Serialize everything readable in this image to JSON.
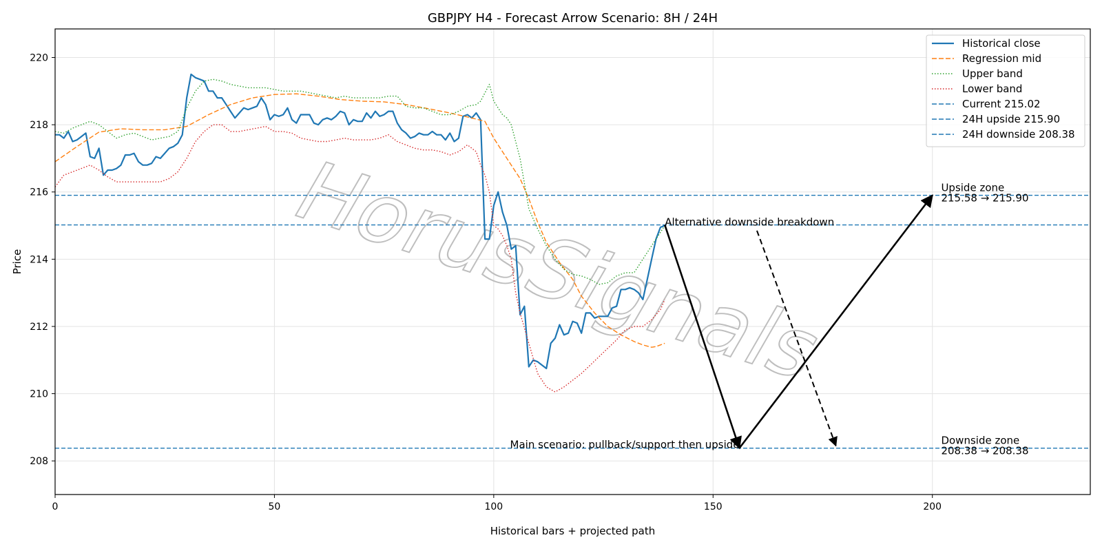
{
  "chart_data": {
    "type": "line",
    "title": "GBPJPY H4 - Forecast Arrow Scenario: 8H / 24H",
    "xlabel": "Historical bars + projected path",
    "ylabel": "Price",
    "xlim": [
      0,
      236
    ],
    "ylim": [
      207,
      220.85
    ],
    "x_ticks": [
      0,
      50,
      100,
      150,
      200
    ],
    "y_ticks": [
      208,
      210,
      212,
      214,
      216,
      218,
      220
    ],
    "grid": true,
    "legend_position": "upper right",
    "watermark": "HorusSignals",
    "colors": {
      "historical": "#1f77b4",
      "regression": "#ff7f0e",
      "upper": "#2ca02c",
      "lower": "#d62728",
      "levels": "#1f77b4",
      "arrows": "#000000"
    },
    "series": [
      {
        "name": "Historical close",
        "style": "solid",
        "x": [
          0,
          1,
          2,
          3,
          4,
          5,
          6,
          7,
          8,
          9,
          10,
          11,
          12,
          13,
          14,
          15,
          16,
          17,
          18,
          19,
          20,
          21,
          22,
          23,
          24,
          25,
          26,
          27,
          28,
          29,
          30,
          31,
          32,
          33,
          34,
          35,
          36,
          37,
          38,
          39,
          40,
          41,
          42,
          43,
          44,
          45,
          46,
          47,
          48,
          49,
          50,
          51,
          52,
          53,
          54,
          55,
          56,
          57,
          58,
          59,
          60,
          61,
          62,
          63,
          64,
          65,
          66,
          67,
          68,
          69,
          70,
          71,
          72,
          73,
          74,
          75,
          76,
          77,
          78,
          79,
          80,
          81,
          82,
          83,
          84,
          85,
          86,
          87,
          88,
          89,
          90,
          91,
          92,
          93,
          94,
          95,
          96,
          97,
          98,
          99,
          100,
          101,
          102,
          103,
          104,
          105,
          106,
          107,
          108,
          109,
          110,
          111,
          112,
          113,
          114,
          115,
          116,
          117,
          118,
          119,
          120,
          121,
          122,
          123,
          124,
          125,
          126,
          127,
          128,
          129,
          130,
          131,
          132,
          133,
          134,
          135,
          136,
          137,
          138,
          139
        ],
        "values": [
          217.7,
          217.7,
          217.6,
          217.8,
          217.5,
          217.55,
          217.65,
          217.75,
          217.05,
          217.0,
          217.3,
          216.5,
          216.65,
          216.65,
          216.7,
          216.8,
          217.1,
          217.1,
          217.15,
          216.9,
          216.8,
          216.8,
          216.85,
          217.05,
          217.0,
          217.15,
          217.3,
          217.35,
          217.45,
          217.7,
          218.8,
          219.5,
          219.4,
          219.35,
          219.3,
          219.0,
          219.0,
          218.8,
          218.8,
          218.6,
          218.4,
          218.2,
          218.35,
          218.5,
          218.45,
          218.5,
          218.55,
          218.8,
          218.6,
          218.15,
          218.3,
          218.25,
          218.3,
          218.5,
          218.15,
          218.05,
          218.3,
          218.3,
          218.3,
          218.05,
          218.0,
          218.15,
          218.2,
          218.15,
          218.25,
          218.4,
          218.35,
          218.0,
          218.15,
          218.1,
          218.1,
          218.35,
          218.2,
          218.4,
          218.25,
          218.3,
          218.4,
          218.4,
          218.05,
          217.85,
          217.75,
          217.6,
          217.65,
          217.75,
          217.7,
          217.7,
          217.8,
          217.7,
          217.7,
          217.55,
          217.75,
          217.5,
          217.6,
          218.25,
          218.3,
          218.2,
          218.35,
          218.15,
          214.6,
          214.6,
          215.6,
          216.0,
          215.4,
          215.0,
          214.3,
          214.4,
          212.35,
          212.6,
          210.8,
          211.0,
          210.95,
          210.85,
          210.75,
          211.5,
          211.65,
          212.05,
          211.75,
          211.8,
          212.15,
          212.1,
          211.8,
          212.4,
          212.4,
          212.25,
          212.3,
          212.3,
          212.3,
          212.55,
          212.6,
          213.1,
          213.1,
          213.15,
          213.1,
          213.0,
          212.8,
          213.4,
          214.0,
          214.6,
          214.95,
          215.0
        ]
      },
      {
        "name": "Regression mid",
        "style": "dashed",
        "x": [
          0,
          5,
          10,
          15,
          20,
          25,
          30,
          35,
          40,
          45,
          50,
          55,
          60,
          65,
          70,
          75,
          80,
          85,
          90,
          95,
          98,
          100,
          102,
          104,
          106,
          108,
          110,
          112,
          115,
          118,
          120,
          123,
          126,
          129,
          132,
          134,
          136,
          137,
          138,
          139
        ],
        "values": [
          216.9,
          217.35,
          217.78,
          217.88,
          217.85,
          217.85,
          217.95,
          218.3,
          218.6,
          218.8,
          218.9,
          218.92,
          218.85,
          218.75,
          218.7,
          218.68,
          218.6,
          218.48,
          218.35,
          218.2,
          218.1,
          217.6,
          217.2,
          216.8,
          216.4,
          215.8,
          215.1,
          214.5,
          213.9,
          213.4,
          212.9,
          212.4,
          212.0,
          211.75,
          211.55,
          211.45,
          211.38,
          211.4,
          211.45,
          211.5
        ]
      },
      {
        "name": "Upper band",
        "style": "dotted",
        "x": [
          0,
          2,
          4,
          6,
          8,
          10,
          12,
          14,
          16,
          18,
          20,
          22,
          24,
          26,
          28,
          30,
          32,
          34,
          36,
          38,
          40,
          42,
          44,
          46,
          48,
          50,
          52,
          54,
          56,
          58,
          60,
          62,
          64,
          66,
          68,
          70,
          72,
          74,
          76,
          78,
          80,
          82,
          84,
          86,
          88,
          90,
          92,
          94,
          96,
          97,
          98,
          99,
          100,
          101,
          102,
          103,
          104,
          106,
          108,
          110,
          112,
          114,
          116,
          118,
          120,
          122,
          124,
          126,
          128,
          130,
          132,
          134,
          136,
          138,
          139
        ],
        "values": [
          217.8,
          217.75,
          217.9,
          218.0,
          218.1,
          218.0,
          217.8,
          217.6,
          217.7,
          217.75,
          217.65,
          217.55,
          217.6,
          217.65,
          217.8,
          218.5,
          219.0,
          219.3,
          219.35,
          219.3,
          219.2,
          219.15,
          219.1,
          219.1,
          219.1,
          219.05,
          219.0,
          219.0,
          219.0,
          218.95,
          218.9,
          218.85,
          218.8,
          218.85,
          218.8,
          218.8,
          218.8,
          218.8,
          218.85,
          218.85,
          218.55,
          218.5,
          218.5,
          218.4,
          218.3,
          218.3,
          218.4,
          218.55,
          218.6,
          218.7,
          218.95,
          219.2,
          218.7,
          218.5,
          218.3,
          218.2,
          218.0,
          217.0,
          215.5,
          214.9,
          214.4,
          214.0,
          213.7,
          213.55,
          213.5,
          213.4,
          213.25,
          213.3,
          213.5,
          213.6,
          213.6,
          214.0,
          214.4,
          214.8,
          215.0
        ]
      },
      {
        "name": "Lower band",
        "style": "dotted",
        "x": [
          0,
          2,
          4,
          6,
          8,
          10,
          12,
          14,
          16,
          18,
          20,
          22,
          24,
          26,
          28,
          30,
          32,
          34,
          36,
          38,
          40,
          42,
          44,
          46,
          48,
          50,
          52,
          54,
          56,
          58,
          60,
          62,
          64,
          66,
          68,
          70,
          72,
          74,
          76,
          78,
          80,
          82,
          84,
          86,
          88,
          90,
          92,
          94,
          96,
          97,
          98,
          99,
          100,
          101,
          102,
          103,
          104,
          105,
          106,
          108,
          110,
          112,
          114,
          116,
          118,
          120,
          122,
          124,
          126,
          128,
          130,
          132,
          134,
          136,
          138,
          139
        ],
        "values": [
          216.15,
          216.5,
          216.6,
          216.7,
          216.8,
          216.65,
          216.45,
          216.3,
          216.3,
          216.3,
          216.3,
          216.3,
          216.3,
          216.4,
          216.6,
          217.0,
          217.5,
          217.8,
          218.0,
          218.0,
          217.8,
          217.8,
          217.85,
          217.9,
          217.95,
          217.8,
          217.8,
          217.75,
          217.6,
          217.55,
          217.5,
          217.5,
          217.55,
          217.6,
          217.55,
          217.55,
          217.55,
          217.6,
          217.7,
          217.5,
          217.4,
          217.3,
          217.25,
          217.25,
          217.2,
          217.1,
          217.2,
          217.4,
          217.2,
          216.8,
          216.5,
          216.0,
          215.0,
          214.9,
          214.7,
          214.4,
          214.0,
          213.0,
          212.4,
          211.5,
          210.6,
          210.2,
          210.05,
          210.2,
          210.4,
          210.6,
          210.85,
          211.1,
          211.35,
          211.6,
          211.9,
          212.0,
          212.0,
          212.2,
          212.5,
          212.8
        ]
      }
    ],
    "levels": [
      {
        "name": "Current 215.02",
        "y": 215.02
      },
      {
        "name": "24H upside 215.90",
        "y": 215.9
      },
      {
        "name": "24H downside 208.38",
        "y": 208.38
      }
    ],
    "arrows": [
      {
        "kind": "main",
        "style": "solid",
        "from": [
          139,
          215.02
        ],
        "to": [
          156,
          208.38
        ]
      },
      {
        "kind": "main",
        "style": "solid",
        "from": [
          156,
          208.38
        ],
        "to": [
          200,
          215.9
        ]
      },
      {
        "kind": "alternative",
        "style": "dashed",
        "from": [
          160,
          214.85
        ],
        "to": [
          178,
          208.45
        ]
      }
    ],
    "annotations": [
      {
        "id": "alt",
        "lines": [
          "Alternative downside breakdown"
        ],
        "x": 139,
        "y": 215.02,
        "anchor": "start"
      },
      {
        "id": "main",
        "lines": [
          "Main scenario: pullback/support then upside"
        ],
        "x": 156,
        "y": 208.38,
        "anchor": "end"
      },
      {
        "id": "upside-zone",
        "lines": [
          "Upside zone",
          "215.58 → 215.90"
        ],
        "x": 202,
        "y": 215.9,
        "anchor": "start"
      },
      {
        "id": "downside-zone",
        "lines": [
          "Downside zone",
          "208.38 → 208.38"
        ],
        "x": 202,
        "y": 208.38,
        "anchor": "start"
      }
    ]
  }
}
